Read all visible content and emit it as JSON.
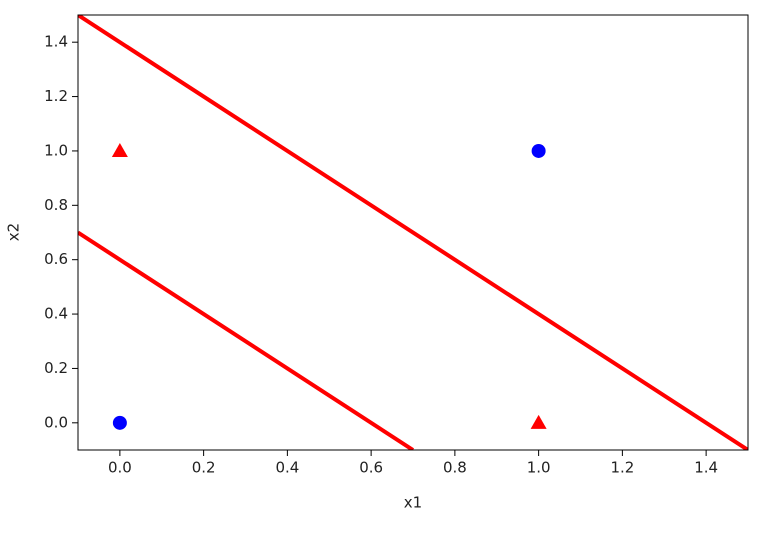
{
  "chart_data": {
    "type": "scatter",
    "xlabel": "x1",
    "ylabel": "x2",
    "xlim": [
      -0.1,
      1.5
    ],
    "ylim": [
      -0.1,
      1.5
    ],
    "xticks": [
      {
        "value": 0,
        "label": "0.0"
      },
      0.2,
      0.4,
      0.6,
      0.8,
      {
        "value": 1,
        "label": "1.0"
      },
      1.2,
      1.4
    ],
    "yticks": [
      {
        "value": 0,
        "label": "0.0"
      },
      0.2,
      0.4,
      0.6,
      0.8,
      {
        "value": 1,
        "label": "1.0"
      },
      1.2,
      1.4
    ],
    "series": [
      {
        "color": "#0000ff",
        "marker": "circle",
        "x": [
          0,
          1
        ],
        "values": [
          0,
          1
        ]
      },
      {
        "color": "#ff0000",
        "marker": "triangle",
        "x": [
          0,
          1
        ],
        "values": [
          1,
          0
        ]
      },
      {
        "color": "#ff0000",
        "marker": "line",
        "x": [
          -0.1,
          1.5
        ],
        "values": [
          1.5,
          -0.1
        ]
      },
      {
        "color": "#ff0000",
        "marker": "line",
        "x": [
          -0.1,
          0.7
        ],
        "values": [
          0.7,
          -0.1
        ]
      }
    ]
  }
}
